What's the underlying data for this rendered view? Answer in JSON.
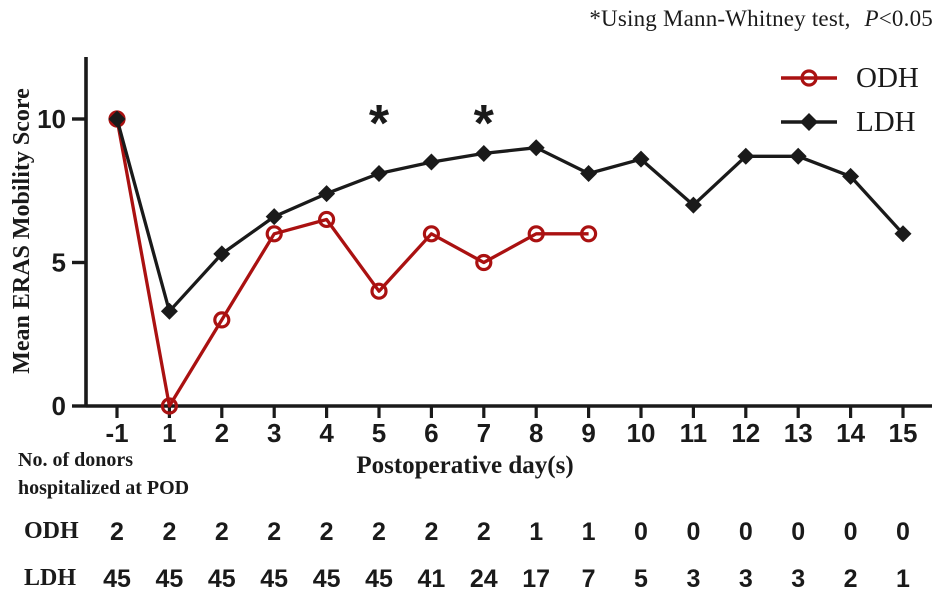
{
  "annotation": {
    "prefix": "*Using Mann-Whitney test,",
    "p_symbol": "P",
    "p_condition": "<0.05"
  },
  "chart_data": {
    "type": "line",
    "title": "",
    "xlabel": "Postoperative day(s)",
    "ylabel": "Mean ERAS Mobility Score",
    "categories": [
      -1,
      1,
      2,
      3,
      4,
      5,
      6,
      7,
      8,
      9,
      10,
      11,
      12,
      13,
      14,
      15
    ],
    "yticks": [
      0,
      5,
      10
    ],
    "ylim": [
      0,
      12.2
    ],
    "grid": false,
    "legend_position": "top-right",
    "series": [
      {
        "name": "ODH",
        "color": "#AA1111",
        "marker": "open-circle",
        "values": [
          10,
          0,
          3,
          6,
          6.5,
          4,
          6,
          5,
          6,
          6,
          null,
          null,
          null,
          null,
          null,
          null
        ]
      },
      {
        "name": "LDH",
        "color": "#1A1A1A",
        "marker": "filled-diamond",
        "values": [
          10,
          3.3,
          5.3,
          6.6,
          7.4,
          8.1,
          8.5,
          8.8,
          9,
          8.1,
          8.6,
          7,
          8.7,
          8.7,
          8,
          6
        ]
      }
    ],
    "significance_marks": [
      {
        "x": 5,
        "symbol": "*"
      },
      {
        "x": 7,
        "symbol": "*"
      }
    ]
  },
  "table": {
    "caption_line1": "No. of donors",
    "caption_line2": "hospitalized at POD",
    "rows": [
      {
        "label": "ODH",
        "values": [
          "2",
          "2",
          "2",
          "2",
          "2",
          "2",
          "2",
          "2",
          "1",
          "1",
          "0",
          "0",
          "0",
          "0",
          "0",
          "0"
        ]
      },
      {
        "label": "LDH",
        "values": [
          "45",
          "45",
          "45",
          "45",
          "45",
          "45",
          "41",
          "24",
          "17",
          "7",
          "5",
          "3",
          "3",
          "3",
          "2",
          "1"
        ]
      }
    ]
  }
}
